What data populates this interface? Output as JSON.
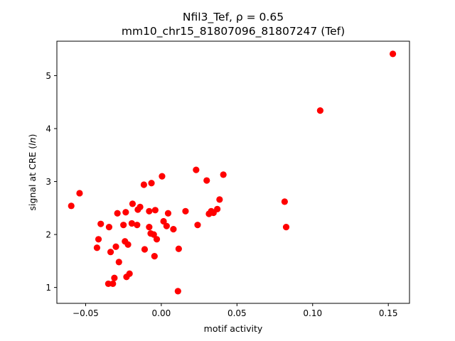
{
  "chart_data": {
    "type": "scatter",
    "title_line1": "Nfil3_Tef, ρ = 0.65",
    "title_line2": "mm10_chr15_81807096_81807247 (Tef)",
    "xlabel": "motif activity",
    "ylabel": "signal at CRE (ln)",
    "xlim": [
      -0.069,
      0.164
    ],
    "ylim": [
      0.7,
      5.65
    ],
    "x_ticks": [
      -0.05,
      0.0,
      0.05,
      0.1,
      0.15
    ],
    "x_tick_labels": [
      "−0.05",
      "0.00",
      "0.05",
      "0.10",
      "0.15"
    ],
    "y_ticks": [
      1,
      2,
      3,
      4,
      5
    ],
    "y_tick_labels": [
      "1",
      "2",
      "3",
      "4",
      "5"
    ],
    "marker_color": "#ff0000",
    "points": [
      {
        "x": -0.0595,
        "y": 2.54
      },
      {
        "x": -0.054,
        "y": 2.78
      },
      {
        "x": -0.0425,
        "y": 1.75
      },
      {
        "x": -0.0415,
        "y": 1.91
      },
      {
        "x": -0.04,
        "y": 2.2
      },
      {
        "x": -0.035,
        "y": 1.07
      },
      {
        "x": -0.0345,
        "y": 2.14
      },
      {
        "x": -0.0335,
        "y": 1.67
      },
      {
        "x": -0.032,
        "y": 1.07
      },
      {
        "x": -0.031,
        "y": 1.18
      },
      {
        "x": -0.03,
        "y": 1.77
      },
      {
        "x": -0.029,
        "y": 2.4
      },
      {
        "x": -0.028,
        "y": 1.48
      },
      {
        "x": -0.025,
        "y": 2.18
      },
      {
        "x": -0.024,
        "y": 1.87
      },
      {
        "x": -0.0235,
        "y": 2.42
      },
      {
        "x": -0.023,
        "y": 1.2
      },
      {
        "x": -0.022,
        "y": 1.81
      },
      {
        "x": -0.021,
        "y": 1.26
      },
      {
        "x": -0.0195,
        "y": 2.21
      },
      {
        "x": -0.019,
        "y": 2.58
      },
      {
        "x": -0.016,
        "y": 2.18
      },
      {
        "x": -0.0155,
        "y": 2.47
      },
      {
        "x": -0.014,
        "y": 2.52
      },
      {
        "x": -0.0115,
        "y": 2.94
      },
      {
        "x": -0.011,
        "y": 1.72
      },
      {
        "x": -0.008,
        "y": 2.14
      },
      {
        "x": -0.008,
        "y": 2.44
      },
      {
        "x": -0.007,
        "y": 2.02
      },
      {
        "x": -0.0065,
        "y": 2.97
      },
      {
        "x": -0.005,
        "y": 2.0
      },
      {
        "x": -0.0045,
        "y": 1.59
      },
      {
        "x": -0.004,
        "y": 2.46
      },
      {
        "x": -0.003,
        "y": 1.91
      },
      {
        "x": 0.0005,
        "y": 3.1
      },
      {
        "x": 0.0015,
        "y": 2.25
      },
      {
        "x": 0.0035,
        "y": 2.16
      },
      {
        "x": 0.0045,
        "y": 2.4
      },
      {
        "x": 0.008,
        "y": 2.1
      },
      {
        "x": 0.011,
        "y": 0.93
      },
      {
        "x": 0.0115,
        "y": 1.73
      },
      {
        "x": 0.016,
        "y": 2.44
      },
      {
        "x": 0.023,
        "y": 3.22
      },
      {
        "x": 0.024,
        "y": 2.18
      },
      {
        "x": 0.03,
        "y": 3.02
      },
      {
        "x": 0.0315,
        "y": 2.39
      },
      {
        "x": 0.033,
        "y": 2.44
      },
      {
        "x": 0.0345,
        "y": 2.41
      },
      {
        "x": 0.037,
        "y": 2.48
      },
      {
        "x": 0.0385,
        "y": 2.66
      },
      {
        "x": 0.041,
        "y": 3.13
      },
      {
        "x": 0.0815,
        "y": 2.62
      },
      {
        "x": 0.0825,
        "y": 2.14
      },
      {
        "x": 0.105,
        "y": 4.34
      },
      {
        "x": 0.153,
        "y": 5.41
      }
    ]
  }
}
